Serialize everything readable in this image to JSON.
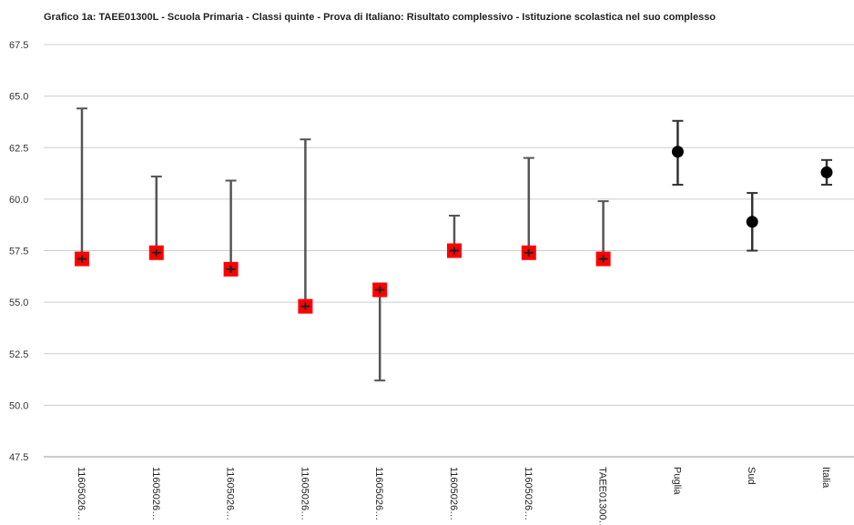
{
  "chart_data": {
    "type": "scatter",
    "title": "Grafico 1a: TAEE01300L - Scuola Primaria - Classi quinte - Prova di Italiano: Risultato complessivo - Istituzione scolastica nel suo complesso",
    "xlabel": "",
    "ylabel": "",
    "ylim": [
      47.5,
      67.5
    ],
    "yticks": [
      "67.5",
      "65.0",
      "62.5",
      "60.0",
      "57.5",
      "55.0",
      "52.5",
      "50.0",
      "47.5"
    ],
    "grid": true,
    "legend": "none",
    "categories": [
      "11605026…",
      "11605026…",
      "11605026…",
      "11605026…",
      "11605026…",
      "11605026…",
      "11605026…",
      "TAEE01300…",
      "Puglia",
      "Sud",
      "Italia"
    ],
    "points": [
      {
        "value": 57.1,
        "low": 57.1,
        "high": 64.4,
        "marker": "square",
        "color": "#ff0000"
      },
      {
        "value": 57.4,
        "low": 57.3,
        "high": 61.1,
        "marker": "square",
        "color": "#ff0000"
      },
      {
        "value": 56.6,
        "low": 56.5,
        "high": 60.9,
        "marker": "square",
        "color": "#ff0000"
      },
      {
        "value": 54.8,
        "low": 54.7,
        "high": 62.9,
        "marker": "square",
        "color": "#ff0000"
      },
      {
        "value": 55.6,
        "low": 51.2,
        "high": 55.6,
        "marker": "square",
        "color": "#ff0000"
      },
      {
        "value": 57.5,
        "low": 57.3,
        "high": 59.2,
        "marker": "square",
        "color": "#ff0000"
      },
      {
        "value": 57.4,
        "low": 57.2,
        "high": 62.0,
        "marker": "square",
        "color": "#ff0000"
      },
      {
        "value": 57.1,
        "low": 57.0,
        "high": 59.9,
        "marker": "square",
        "color": "#ff0000"
      },
      {
        "value": 62.3,
        "low": 60.7,
        "high": 63.8,
        "marker": "circle",
        "color": "#000000"
      },
      {
        "value": 58.9,
        "low": 57.5,
        "high": 60.3,
        "marker": "circle",
        "color": "#000000"
      },
      {
        "value": 61.3,
        "low": 60.7,
        "high": 61.9,
        "marker": "circle",
        "color": "#000000"
      }
    ]
  }
}
